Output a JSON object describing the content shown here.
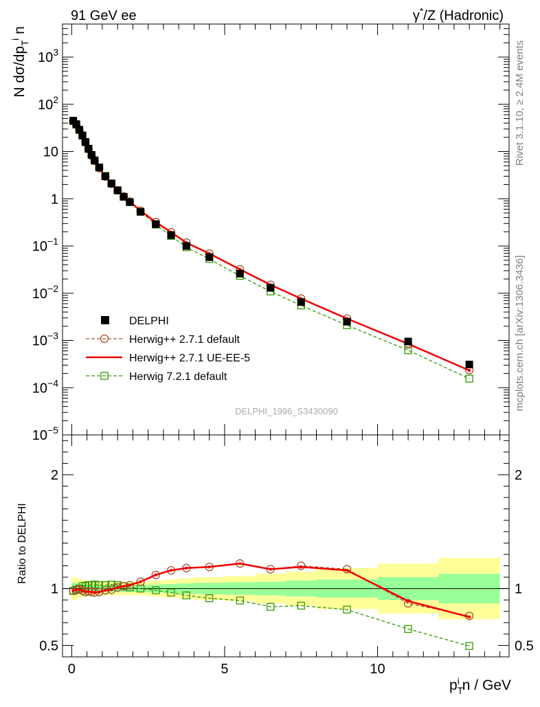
{
  "header": {
    "left": "91 GeV ee",
    "right_prefix": "γ",
    "right_sup": "*",
    "right_suffix": "/Z (Hadronic)"
  },
  "side_texts": {
    "rivet": "Rivet 3.1.10, ≥ 2.4M events",
    "mcplots": "mcplots.cern.ch [arXiv:1306.3436]"
  },
  "watermark": "DELPHI_1996_S3430090",
  "legend": [
    {
      "label": "DELPHI",
      "color": "#000000",
      "style": "square"
    },
    {
      "label": "Herwig++ 2.7.1 default",
      "color": "#a0522d",
      "style": "circle-dashed"
    },
    {
      "label": "Herwig++ 2.7.1 UE-EE-5",
      "color": "#ee0000",
      "style": "solid"
    },
    {
      "label": "Herwig 7.2.1 default",
      "color": "#339900",
      "style": "square-dashed"
    }
  ],
  "chart_data": [
    {
      "type": "line",
      "log_y": true,
      "ylabel": "N dσ/dp_T^i n",
      "ylim": [
        1e-05,
        5000
      ],
      "xlim": [
        -0.3,
        14.3
      ],
      "y_ticks": [
        {
          "v": 1e-05,
          "label": "10",
          "exp": "−5"
        },
        {
          "v": 0.0001,
          "label": "10",
          "exp": "−4"
        },
        {
          "v": 0.001,
          "label": "10",
          "exp": "−3"
        },
        {
          "v": 0.01,
          "label": "10",
          "exp": "−2"
        },
        {
          "v": 0.1,
          "label": "10",
          "exp": "−1"
        },
        {
          "v": 1,
          "label": "1",
          "exp": ""
        },
        {
          "v": 10,
          "label": "10",
          "exp": ""
        },
        {
          "v": 100,
          "label": "10",
          "exp": "2"
        },
        {
          "v": 1000,
          "label": "10",
          "exp": "3"
        }
      ],
      "x": [
        0.05,
        0.15,
        0.25,
        0.35,
        0.45,
        0.55,
        0.65,
        0.75,
        0.9,
        1.1,
        1.3,
        1.5,
        1.7,
        1.9,
        2.25,
        2.75,
        3.25,
        3.75,
        4.5,
        5.5,
        6.5,
        7.5,
        9.0,
        11.0,
        13.0
      ],
      "series": [
        {
          "name": "DELPHI",
          "values": [
            45,
            38,
            29,
            22,
            16,
            11.5,
            8.5,
            6.5,
            4.6,
            3.0,
            2.1,
            1.5,
            1.1,
            0.85,
            0.53,
            0.29,
            0.17,
            0.1,
            0.058,
            0.026,
            0.013,
            0.0065,
            0.0025,
            0.00095,
            0.00031
          ]
        },
        {
          "name": "Herwig++ 2.7.1 default",
          "values": [
            44,
            37,
            28.5,
            21.5,
            15.5,
            11.2,
            8.2,
            6.3,
            4.45,
            2.95,
            2.08,
            1.52,
            1.12,
            0.87,
            0.56,
            0.32,
            0.195,
            0.118,
            0.069,
            0.032,
            0.0151,
            0.0077,
            0.0029,
            0.00082,
            0.000235
          ]
        },
        {
          "name": "Herwig++ 2.7.1 UE-EE-5",
          "values": [
            44,
            37,
            28.5,
            21.5,
            15.5,
            11.2,
            8.2,
            6.3,
            4.45,
            2.95,
            2.08,
            1.52,
            1.12,
            0.87,
            0.56,
            0.32,
            0.195,
            0.118,
            0.069,
            0.032,
            0.0151,
            0.0077,
            0.0029,
            0.00085,
            0.000232
          ]
        },
        {
          "name": "Herwig 7.2.1 default",
          "values": [
            44,
            37,
            28.5,
            21.6,
            15.7,
            11.3,
            8.4,
            6.4,
            4.6,
            3.05,
            2.12,
            1.52,
            1.1,
            0.85,
            0.53,
            0.284,
            0.163,
            0.094,
            0.053,
            0.0234,
            0.0109,
            0.0055,
            0.0021,
            0.00062,
            0.000155
          ]
        }
      ]
    },
    {
      "type": "line",
      "ylabel": "Ratio to DELPHI",
      "xlabel": "p_T^i n / GeV",
      "ylim": [
        0.4,
        2.35
      ],
      "xlim": [
        -0.3,
        14.3
      ],
      "y_ticks": [
        0.5,
        1,
        2
      ],
      "x_ticks": [
        0,
        5,
        10
      ],
      "x": [
        0.05,
        0.15,
        0.25,
        0.35,
        0.45,
        0.55,
        0.65,
        0.75,
        0.9,
        1.1,
        1.3,
        1.5,
        1.7,
        1.9,
        2.25,
        2.75,
        3.25,
        3.75,
        4.5,
        5.5,
        6.5,
        7.5,
        9.0,
        11.0,
        13.0
      ],
      "bands": {
        "edges": [
          0,
          0.2,
          0.4,
          0.6,
          0.8,
          1.0,
          1.2,
          1.4,
          1.6,
          1.8,
          2.0,
          2.5,
          3.0,
          3.5,
          4.0,
          5.0,
          6.0,
          7.0,
          8.0,
          10.0,
          12.0,
          14.0
        ],
        "inner": [
          0.05,
          0.04,
          0.035,
          0.03,
          0.03,
          0.03,
          0.03,
          0.03,
          0.03,
          0.03,
          0.03,
          0.035,
          0.04,
          0.045,
          0.05,
          0.055,
          0.06,
          0.07,
          0.08,
          0.1,
          0.13
        ],
        "outer": [
          0.1,
          0.08,
          0.07,
          0.06,
          0.06,
          0.06,
          0.06,
          0.06,
          0.06,
          0.06,
          0.06,
          0.07,
          0.08,
          0.09,
          0.1,
          0.11,
          0.13,
          0.15,
          0.18,
          0.22,
          0.27
        ],
        "inner_color": "#99ff99",
        "outer_color": "#ffff99"
      },
      "series": [
        {
          "name": "Herwig++ 2.7.1 default",
          "values": [
            0.98,
            0.99,
            0.995,
            0.98,
            0.97,
            0.975,
            0.97,
            0.965,
            0.97,
            0.985,
            0.99,
            1.01,
            1.02,
            1.03,
            1.06,
            1.12,
            1.16,
            1.18,
            1.19,
            1.22,
            1.17,
            1.2,
            1.17,
            0.87,
            0.76
          ]
        },
        {
          "name": "Herwig++ 2.7.1 UE-EE-5",
          "values": [
            0.98,
            0.99,
            0.995,
            0.98,
            0.97,
            0.975,
            0.97,
            0.965,
            0.97,
            0.985,
            0.99,
            1.01,
            1.02,
            1.03,
            1.06,
            1.12,
            1.16,
            1.18,
            1.19,
            1.22,
            1.17,
            1.19,
            1.16,
            0.89,
            0.75
          ]
        },
        {
          "name": "Herwig 7.2.1 default",
          "values": [
            0.98,
            0.99,
            1.0,
            1.02,
            1.025,
            1.03,
            1.03,
            1.035,
            1.03,
            1.03,
            1.035,
            1.03,
            1.02,
            1.01,
            1.0,
            0.985,
            0.965,
            0.94,
            0.915,
            0.895,
            0.84,
            0.85,
            0.815,
            0.645,
            0.495
          ]
        }
      ]
    }
  ]
}
